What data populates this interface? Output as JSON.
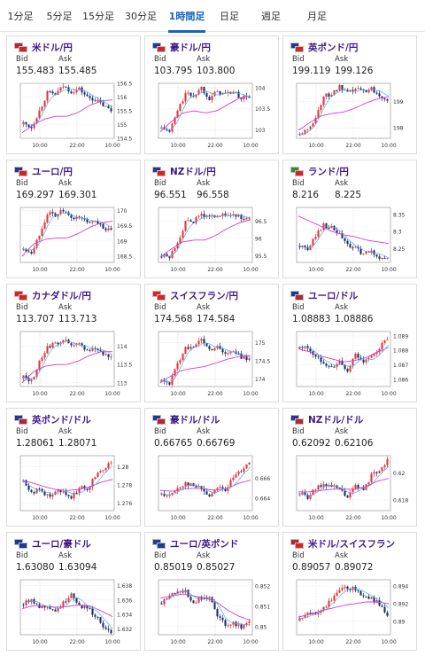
{
  "tabs": [
    {
      "label": "1分足",
      "active": false
    },
    {
      "label": "5分足",
      "active": false
    },
    {
      "label": "15分足",
      "active": false
    },
    {
      "label": "30分足",
      "active": false
    },
    {
      "label": "1時間足",
      "active": true
    },
    {
      "label": "日足",
      "active": false
    },
    {
      "label": "週足",
      "active": false
    },
    {
      "label": "月足",
      "active": false
    }
  ],
  "labels": {
    "bid": "Bid",
    "ask": "Ask"
  },
  "x_ticks": [
    "10:00",
    "22:00",
    "10:00"
  ],
  "colors": {
    "up": "#e8343a",
    "down": "#1c2d6b",
    "ma1": "#d63ad6",
    "ma2": "#4ab0e0",
    "pair_text": "#3d1a8b",
    "active_tab": "#1565c0"
  },
  "cards": [
    {
      "pair": "米ドル/円",
      "flags": [
        "#b8242f",
        "#d92323"
      ],
      "bid": "155.483",
      "ask": "155.485",
      "chart_data": {
        "type": "candlestick",
        "ylim": [
          154.5,
          156.5
        ],
        "y_ticks": [
          "156.5",
          "156",
          "155.5",
          "155",
          "154.5"
        ],
        "y_tick_values": [
          156.5,
          156,
          155.5,
          155,
          154.5
        ],
        "anchors": [
          155.05,
          154.9,
          155.5,
          156.15,
          156.1,
          156.4,
          156.2,
          156.3,
          156.0,
          155.9,
          155.7,
          155.5
        ],
        "ma_anchors": [
          154.7,
          155.0,
          155.2,
          155.3,
          155.3,
          155.45,
          155.7,
          155.85,
          155.9
        ]
      }
    },
    {
      "pair": "豪ドル/円",
      "flags": [
        "#1f3a93",
        "#d92323"
      ],
      "bid": "103.795",
      "ask": "103.800",
      "chart_data": {
        "type": "candlestick",
        "ylim": [
          102.8,
          104.1
        ],
        "y_ticks": [
          "104",
          "103.5",
          "103"
        ],
        "y_tick_values": [
          104,
          103.5,
          103
        ],
        "anchors": [
          103.05,
          102.95,
          103.45,
          103.85,
          103.8,
          104.0,
          103.75,
          103.9,
          103.85,
          103.9,
          103.75,
          103.8
        ],
        "ma_anchors": [
          102.95,
          103.2,
          103.4,
          103.45,
          103.4,
          103.45,
          103.6,
          103.75,
          103.8
        ]
      }
    },
    {
      "pair": "英ポンド/円",
      "flags": [
        "#1f3a93",
        "#d92323"
      ],
      "bid": "199.119",
      "ask": "199.126",
      "chart_data": {
        "type": "candlestick",
        "ylim": [
          197.6,
          199.7
        ],
        "y_ticks": [
          "199",
          "198"
        ],
        "y_tick_values": [
          199,
          198
        ],
        "anchors": [
          197.75,
          197.9,
          198.4,
          199.2,
          199.3,
          199.55,
          199.3,
          199.5,
          199.4,
          199.5,
          199.25,
          199.1
        ],
        "ma_anchors": [
          197.9,
          198.2,
          198.45,
          198.55,
          198.6,
          198.75,
          198.95,
          199.1,
          199.2
        ]
      }
    },
    {
      "pair": "ユーロ/円",
      "flags": [
        "#1f3a93",
        "#d92323"
      ],
      "bid": "169.297",
      "ask": "169.301",
      "chart_data": {
        "type": "candlestick",
        "ylim": [
          168.3,
          170.1
        ],
        "y_ticks": [
          "170",
          "169.5",
          "169",
          "168.5"
        ],
        "y_tick_values": [
          170,
          169.5,
          169,
          168.5
        ],
        "anchors": [
          168.75,
          168.65,
          169.2,
          169.9,
          169.85,
          170.0,
          169.7,
          169.8,
          169.6,
          169.7,
          169.45,
          169.3
        ],
        "ma_anchors": [
          168.5,
          168.9,
          169.05,
          169.1,
          169.1,
          169.25,
          169.45,
          169.6,
          169.65
        ]
      }
    },
    {
      "pair": "NZドル/円",
      "flags": [
        "#1f3a93",
        "#d92323"
      ],
      "bid": "96.551",
      "ask": "96.558",
      "chart_data": {
        "type": "candlestick",
        "ylim": [
          95.3,
          96.9
        ],
        "y_ticks": [
          "96.5",
          "96",
          "95.5"
        ],
        "y_tick_values": [
          96.5,
          96,
          95.5
        ],
        "anchors": [
          95.5,
          95.45,
          95.9,
          96.45,
          96.5,
          96.7,
          96.6,
          96.7,
          96.65,
          96.7,
          96.6,
          96.55
        ],
        "ma_anchors": [
          95.45,
          95.7,
          95.9,
          95.95,
          95.95,
          96.1,
          96.3,
          96.45,
          96.55
        ]
      }
    },
    {
      "pair": "ランド/円",
      "flags": [
        "#2e8b3a",
        "#d92323"
      ],
      "bid": "8.216",
      "ask": "8.225",
      "chart_data": {
        "type": "candlestick",
        "ylim": [
          8.21,
          8.37
        ],
        "y_ticks": [
          "8.35",
          "8.3",
          "8.25"
        ],
        "y_tick_values": [
          8.35,
          8.3,
          8.25
        ],
        "anchors": [
          8.26,
          8.245,
          8.29,
          8.32,
          8.31,
          8.29,
          8.26,
          8.25,
          8.235,
          8.24,
          8.225,
          8.22
        ],
        "ma_anchors": [
          8.345,
          8.33,
          8.315,
          8.3,
          8.29,
          8.285,
          8.275,
          8.27,
          8.265
        ]
      }
    },
    {
      "pair": "カナダドル/円",
      "flags": [
        "#d92323",
        "#d92323"
      ],
      "bid": "113.707",
      "ask": "113.713",
      "chart_data": {
        "type": "candlestick",
        "ylim": [
          112.9,
          114.4
        ],
        "y_ticks": [
          "114",
          "113.5",
          "113"
        ],
        "y_tick_values": [
          114,
          113.5,
          113
        ],
        "anchors": [
          113.15,
          113.05,
          113.55,
          114.0,
          114.05,
          114.2,
          114.0,
          114.05,
          113.9,
          113.95,
          113.8,
          113.7
        ],
        "ma_anchors": [
          113.0,
          113.3,
          113.45,
          113.5,
          113.5,
          113.6,
          113.75,
          113.85,
          113.85
        ]
      }
    },
    {
      "pair": "スイスフラン/円",
      "flags": [
        "#d92323",
        "#d92323"
      ],
      "bid": "174.568",
      "ask": "174.584",
      "chart_data": {
        "type": "candlestick",
        "ylim": [
          173.8,
          175.3
        ],
        "y_ticks": [
          "175",
          "174.5",
          "174"
        ],
        "y_tick_values": [
          175,
          174.5,
          174
        ],
        "anchors": [
          173.95,
          173.9,
          174.4,
          174.9,
          174.85,
          175.1,
          174.8,
          174.9,
          174.7,
          174.75,
          174.6,
          174.57
        ],
        "ma_anchors": [
          173.9,
          174.1,
          174.25,
          174.3,
          174.35,
          174.45,
          174.55,
          174.62,
          174.65
        ]
      }
    },
    {
      "pair": "ユーロ/ドル",
      "flags": [
        "#1f3a93",
        "#b8242f"
      ],
      "bid": "1.08883",
      "ask": "1.08886",
      "chart_data": {
        "type": "candlestick",
        "ylim": [
          1.0855,
          1.0893
        ],
        "y_ticks": [
          "1.089",
          "1.088",
          "1.087",
          "1.086"
        ],
        "y_tick_values": [
          1.089,
          1.088,
          1.087,
          1.086
        ],
        "anchors": [
          1.0882,
          1.0882,
          1.0875,
          1.0872,
          1.0868,
          1.0872,
          1.0865,
          1.0878,
          1.0872,
          1.0875,
          1.0882,
          1.0888
        ],
        "ma_anchors": [
          1.0881,
          1.0879,
          1.0876,
          1.0874,
          1.0872,
          1.0873,
          1.0875,
          1.0879,
          1.0882
        ]
      }
    },
    {
      "pair": "英ポンド/ドル",
      "flags": [
        "#1f3a93",
        "#b8242f"
      ],
      "bid": "1.28061",
      "ask": "1.28071",
      "chart_data": {
        "type": "candlestick",
        "ylim": [
          1.2752,
          1.2812
        ],
        "y_ticks": [
          "1.28",
          "1.278",
          "1.276"
        ],
        "y_tick_values": [
          1.28,
          1.278,
          1.276
        ],
        "anchors": [
          1.2785,
          1.2772,
          1.2775,
          1.2768,
          1.2772,
          1.2775,
          1.2765,
          1.2778,
          1.2775,
          1.279,
          1.2798,
          1.2806
        ],
        "ma_anchors": [
          1.2785,
          1.2782,
          1.2778,
          1.2775,
          1.2774,
          1.2775,
          1.2778,
          1.2783,
          1.2786
        ]
      }
    },
    {
      "pair": "豪ドル/ドル",
      "flags": [
        "#1f3a93",
        "#b8242f"
      ],
      "bid": "0.66765",
      "ask": "0.66769",
      "chart_data": {
        "type": "candlestick",
        "ylim": [
          0.6628,
          0.6682
        ],
        "y_ticks": [
          "0.666",
          "0.664"
        ],
        "y_tick_values": [
          0.666,
          0.664
        ],
        "anchors": [
          0.6645,
          0.6642,
          0.665,
          0.6655,
          0.6652,
          0.665,
          0.6642,
          0.6652,
          0.6648,
          0.666,
          0.6668,
          0.6677
        ],
        "ma_anchors": [
          0.6648,
          0.6647,
          0.6649,
          0.665,
          0.6649,
          0.6648,
          0.665,
          0.6655,
          0.6658
        ]
      }
    },
    {
      "pair": "NZドル/ドル",
      "flags": [
        "#1f3a93",
        "#b8242f"
      ],
      "bid": "0.62092",
      "ask": "0.62106",
      "chart_data": {
        "type": "candlestick",
        "ylim": [
          0.6172,
          0.6213
        ],
        "y_ticks": [
          "0.62",
          "0.618"
        ],
        "y_tick_values": [
          0.62,
          0.618
        ],
        "anchors": [
          0.6185,
          0.6182,
          0.6188,
          0.6192,
          0.619,
          0.6188,
          0.6182,
          0.619,
          0.6188,
          0.6198,
          0.6203,
          0.6209
        ],
        "ma_anchors": [
          0.6186,
          0.6186,
          0.6187,
          0.6188,
          0.6188,
          0.6188,
          0.619,
          0.6194,
          0.6196
        ]
      }
    },
    {
      "pair": "ユーロ/豪ドル",
      "flags": [
        "#1f3a93",
        "#1f3a93"
      ],
      "bid": "1.63080",
      "ask": "1.63094",
      "chart_data": {
        "type": "candlestick",
        "ylim": [
          1.6312,
          1.6388
        ],
        "y_ticks": [
          "1.638",
          "1.636",
          "1.634",
          "1.632"
        ],
        "y_tick_values": [
          1.638,
          1.636,
          1.634,
          1.632
        ],
        "anchors": [
          1.6355,
          1.6362,
          1.635,
          1.6352,
          1.6345,
          1.6355,
          1.637,
          1.6352,
          1.635,
          1.6338,
          1.6325,
          1.6312
        ],
        "ma_anchors": [
          1.6348,
          1.6352,
          1.6352,
          1.635,
          1.6351,
          1.6353,
          1.6352,
          1.6345,
          1.6337
        ]
      }
    },
    {
      "pair": "ユーロ/英ポンド",
      "flags": [
        "#1f3a93",
        "#1f3a93"
      ],
      "bid": "0.85019",
      "ask": "0.85027",
      "chart_data": {
        "type": "candlestick",
        "ylim": [
          0.8496,
          0.8523
        ],
        "y_ticks": [
          "0.852",
          "0.851",
          "0.85"
        ],
        "y_tick_values": [
          0.852,
          0.851,
          0.85
        ],
        "anchors": [
          0.8512,
          0.8515,
          0.8518,
          0.8517,
          0.8512,
          0.8514,
          0.8515,
          0.8505,
          0.8501,
          0.8502,
          0.85,
          0.8502
        ],
        "ma_anchors": [
          0.8514,
          0.8515,
          0.8516,
          0.8515,
          0.8514,
          0.8512,
          0.8508,
          0.8505,
          0.8503
        ]
      }
    },
    {
      "pair": "米ドル/スイスフラン",
      "flags": [
        "#b8242f",
        "#d92323"
      ],
      "bid": "0.89057",
      "ask": "0.89072",
      "chart_data": {
        "type": "candlestick",
        "ylim": [
          0.8885,
          0.8947
        ],
        "y_ticks": [
          "0.894",
          "0.892",
          "0.89"
        ],
        "y_tick_values": [
          0.894,
          0.892,
          0.89
        ],
        "anchors": [
          0.8902,
          0.8908,
          0.891,
          0.8915,
          0.8925,
          0.8935,
          0.8938,
          0.8936,
          0.893,
          0.8925,
          0.892,
          0.8906
        ],
        "ma_anchors": [
          0.8905,
          0.8908,
          0.8912,
          0.8915,
          0.8918,
          0.892,
          0.8922,
          0.8922,
          0.892
        ]
      }
    }
  ]
}
